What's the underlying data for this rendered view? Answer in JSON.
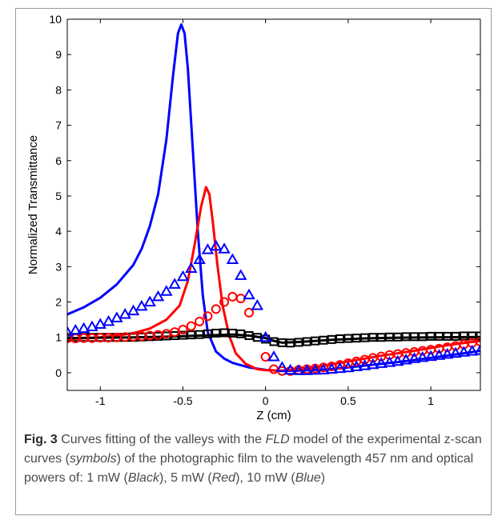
{
  "chart_data": {
    "type": "scatter",
    "xlabel": "Z (cm)",
    "ylabel": "Normalized Transmittance",
    "xlim": [
      -1.2,
      1.3
    ],
    "ylim": [
      -0.5,
      10
    ],
    "x_ticks": [
      "-1",
      "-0.5",
      "0",
      "0.5",
      "1"
    ],
    "x_tick_values": [
      -1,
      -0.5,
      0,
      0.5,
      1
    ],
    "y_ticks": [
      "0",
      "1",
      "2",
      "3",
      "4",
      "5",
      "6",
      "7",
      "8",
      "9",
      "10"
    ],
    "y_tick_values": [
      0,
      1,
      2,
      3,
      4,
      5,
      6,
      7,
      8,
      9,
      10
    ],
    "grid": false,
    "series": [
      {
        "kind": "fit",
        "color": "#0000ff",
        "points": [
          [
            -1.2,
            1.65
          ],
          [
            -1.1,
            1.85
          ],
          [
            -1.0,
            2.12
          ],
          [
            -0.9,
            2.5
          ],
          [
            -0.8,
            3.05
          ],
          [
            -0.75,
            3.5
          ],
          [
            -0.7,
            4.15
          ],
          [
            -0.65,
            5.05
          ],
          [
            -0.6,
            6.6
          ],
          [
            -0.56,
            8.4
          ],
          [
            -0.53,
            9.6
          ],
          [
            -0.51,
            9.85
          ],
          [
            -0.49,
            9.6
          ],
          [
            -0.47,
            8.6
          ],
          [
            -0.44,
            6.3
          ],
          [
            -0.41,
            4.0
          ],
          [
            -0.38,
            2.2
          ],
          [
            -0.35,
            1.15
          ],
          [
            -0.3,
            0.6
          ],
          [
            -0.25,
            0.4
          ],
          [
            -0.2,
            0.28
          ],
          [
            -0.1,
            0.15
          ],
          [
            0.0,
            0.08
          ],
          [
            0.1,
            0.05
          ],
          [
            0.2,
            0.06
          ],
          [
            0.4,
            0.1
          ],
          [
            0.6,
            0.2
          ],
          [
            0.8,
            0.3
          ],
          [
            1.0,
            0.42
          ],
          [
            1.2,
            0.55
          ],
          [
            1.3,
            0.62
          ]
        ]
      },
      {
        "kind": "fit",
        "color": "#ff0000",
        "points": [
          [
            -1.2,
            0.95
          ],
          [
            -1.0,
            1.0
          ],
          [
            -0.9,
            1.05
          ],
          [
            -0.8,
            1.12
          ],
          [
            -0.7,
            1.25
          ],
          [
            -0.6,
            1.5
          ],
          [
            -0.52,
            1.9
          ],
          [
            -0.47,
            2.6
          ],
          [
            -0.43,
            3.6
          ],
          [
            -0.39,
            4.7
          ],
          [
            -0.36,
            5.25
          ],
          [
            -0.34,
            5.05
          ],
          [
            -0.32,
            4.3
          ],
          [
            -0.29,
            3.0
          ],
          [
            -0.26,
            1.9
          ],
          [
            -0.22,
            1.05
          ],
          [
            -0.18,
            0.55
          ],
          [
            -0.12,
            0.25
          ],
          [
            -0.05,
            0.1
          ],
          [
            0.0,
            0.07
          ],
          [
            0.1,
            0.06
          ],
          [
            0.3,
            0.15
          ],
          [
            0.5,
            0.32
          ],
          [
            0.7,
            0.48
          ],
          [
            0.9,
            0.62
          ],
          [
            1.1,
            0.78
          ],
          [
            1.3,
            0.9
          ]
        ]
      },
      {
        "kind": "fit",
        "color": "#000000",
        "points": [
          [
            -1.2,
            0.98
          ],
          [
            -1.0,
            0.99
          ],
          [
            -0.8,
            1.0
          ],
          [
            -0.6,
            1.02
          ],
          [
            -0.4,
            1.05
          ],
          [
            -0.2,
            1.08
          ],
          [
            -0.1,
            1.05
          ],
          [
            0.0,
            0.98
          ],
          [
            0.05,
            0.9
          ],
          [
            0.1,
            0.85
          ],
          [
            0.2,
            0.87
          ],
          [
            0.4,
            0.93
          ],
          [
            0.6,
            0.97
          ],
          [
            0.8,
            0.99
          ],
          [
            1.0,
            1.0
          ],
          [
            1.3,
            1.01
          ]
        ]
      },
      {
        "kind": "symbols",
        "marker": "square",
        "color": "#000000",
        "points": [
          [
            -1.2,
            1.0
          ],
          [
            -1.15,
            1.0
          ],
          [
            -1.1,
            1.0
          ],
          [
            -1.05,
            1.0
          ],
          [
            -1.0,
            1.0
          ],
          [
            -0.95,
            1.0
          ],
          [
            -0.9,
            1.0
          ],
          [
            -0.85,
            1.0
          ],
          [
            -0.8,
            1.0
          ],
          [
            -0.75,
            1.01
          ],
          [
            -0.7,
            1.02
          ],
          [
            -0.65,
            1.03
          ],
          [
            -0.6,
            1.04
          ],
          [
            -0.55,
            1.05
          ],
          [
            -0.5,
            1.06
          ],
          [
            -0.45,
            1.07
          ],
          [
            -0.4,
            1.08
          ],
          [
            -0.35,
            1.1
          ],
          [
            -0.3,
            1.12
          ],
          [
            -0.25,
            1.13
          ],
          [
            -0.2,
            1.12
          ],
          [
            -0.15,
            1.1
          ],
          [
            -0.1,
            1.05
          ],
          [
            -0.05,
            1.0
          ],
          [
            0.0,
            0.95
          ],
          [
            0.05,
            0.88
          ],
          [
            0.1,
            0.85
          ],
          [
            0.15,
            0.84
          ],
          [
            0.2,
            0.86
          ],
          [
            0.25,
            0.88
          ],
          [
            0.3,
            0.9
          ],
          [
            0.35,
            0.92
          ],
          [
            0.4,
            0.94
          ],
          [
            0.45,
            0.96
          ],
          [
            0.5,
            0.97
          ],
          [
            0.55,
            0.98
          ],
          [
            0.6,
            0.99
          ],
          [
            0.65,
            1.0
          ],
          [
            0.7,
            1.0
          ],
          [
            0.75,
            1.01
          ],
          [
            0.8,
            1.01
          ],
          [
            0.85,
            1.02
          ],
          [
            0.9,
            1.02
          ],
          [
            0.95,
            1.02
          ],
          [
            1.0,
            1.03
          ],
          [
            1.05,
            1.03
          ],
          [
            1.1,
            1.03
          ],
          [
            1.15,
            1.03
          ],
          [
            1.2,
            1.04
          ],
          [
            1.25,
            1.04
          ],
          [
            1.3,
            1.04
          ]
        ]
      },
      {
        "kind": "symbols",
        "marker": "circle",
        "color": "#ff0000",
        "points": [
          [
            -1.2,
            0.97
          ],
          [
            -1.15,
            0.97
          ],
          [
            -1.1,
            0.98
          ],
          [
            -1.05,
            0.98
          ],
          [
            -1.0,
            0.99
          ],
          [
            -0.95,
            0.99
          ],
          [
            -0.9,
            1.0
          ],
          [
            -0.85,
            1.01
          ],
          [
            -0.8,
            1.02
          ],
          [
            -0.75,
            1.03
          ],
          [
            -0.7,
            1.05
          ],
          [
            -0.65,
            1.07
          ],
          [
            -0.6,
            1.1
          ],
          [
            -0.55,
            1.15
          ],
          [
            -0.5,
            1.22
          ],
          [
            -0.45,
            1.32
          ],
          [
            -0.4,
            1.45
          ],
          [
            -0.35,
            1.6
          ],
          [
            -0.3,
            1.8
          ],
          [
            -0.25,
            2.0
          ],
          [
            -0.2,
            2.15
          ],
          [
            -0.15,
            2.1
          ],
          [
            -0.1,
            1.7
          ],
          [
            0.0,
            0.45
          ],
          [
            0.05,
            0.1
          ],
          [
            0.1,
            0.05
          ],
          [
            0.15,
            0.05
          ],
          [
            0.2,
            0.08
          ],
          [
            0.25,
            0.1
          ],
          [
            0.3,
            0.12
          ],
          [
            0.35,
            0.15
          ],
          [
            0.4,
            0.18
          ],
          [
            0.45,
            0.22
          ],
          [
            0.5,
            0.27
          ],
          [
            0.55,
            0.32
          ],
          [
            0.6,
            0.37
          ],
          [
            0.65,
            0.42
          ],
          [
            0.7,
            0.46
          ],
          [
            0.75,
            0.5
          ],
          [
            0.8,
            0.53
          ],
          [
            0.85,
            0.56
          ],
          [
            0.9,
            0.59
          ],
          [
            0.95,
            0.62
          ],
          [
            1.0,
            0.65
          ],
          [
            1.05,
            0.68
          ],
          [
            1.1,
            0.72
          ],
          [
            1.15,
            0.76
          ],
          [
            1.2,
            0.8
          ],
          [
            1.25,
            0.84
          ],
          [
            1.3,
            0.88
          ]
        ]
      },
      {
        "kind": "symbols",
        "marker": "triangle",
        "color": "#0000ff",
        "points": [
          [
            -1.2,
            1.15
          ],
          [
            -1.15,
            1.2
          ],
          [
            -1.1,
            1.25
          ],
          [
            -1.05,
            1.3
          ],
          [
            -1.0,
            1.37
          ],
          [
            -0.95,
            1.45
          ],
          [
            -0.9,
            1.55
          ],
          [
            -0.85,
            1.65
          ],
          [
            -0.8,
            1.75
          ],
          [
            -0.75,
            1.88
          ],
          [
            -0.7,
            2.0
          ],
          [
            -0.65,
            2.15
          ],
          [
            -0.6,
            2.3
          ],
          [
            -0.55,
            2.5
          ],
          [
            -0.5,
            2.72
          ],
          [
            -0.45,
            2.95
          ],
          [
            -0.4,
            3.2
          ],
          [
            -0.35,
            3.48
          ],
          [
            -0.3,
            3.58
          ],
          [
            -0.25,
            3.5
          ],
          [
            -0.2,
            3.2
          ],
          [
            -0.15,
            2.75
          ],
          [
            -0.1,
            2.2
          ],
          [
            -0.05,
            1.9
          ],
          [
            0.0,
            1.0
          ],
          [
            0.05,
            0.45
          ],
          [
            0.1,
            0.15
          ],
          [
            0.15,
            0.07
          ],
          [
            0.2,
            0.06
          ],
          [
            0.25,
            0.06
          ],
          [
            0.3,
            0.07
          ],
          [
            0.35,
            0.08
          ],
          [
            0.4,
            0.1
          ],
          [
            0.45,
            0.12
          ],
          [
            0.5,
            0.14
          ],
          [
            0.55,
            0.17
          ],
          [
            0.6,
            0.2
          ],
          [
            0.65,
            0.23
          ],
          [
            0.7,
            0.26
          ],
          [
            0.75,
            0.29
          ],
          [
            0.8,
            0.32
          ],
          [
            0.85,
            0.36
          ],
          [
            0.9,
            0.4
          ],
          [
            0.95,
            0.43
          ],
          [
            1.0,
            0.46
          ],
          [
            1.05,
            0.49
          ],
          [
            1.1,
            0.52
          ],
          [
            1.15,
            0.55
          ],
          [
            1.2,
            0.58
          ],
          [
            1.25,
            0.61
          ],
          [
            1.3,
            0.63
          ]
        ]
      }
    ]
  },
  "caption": {
    "fig_label": "Fig. 3",
    "part1": " Curves fitting of the valleys with the ",
    "model": "FLD",
    "part2": " model of the experimental z-scan curves (",
    "symbols": "symbols",
    "part3": ") of the photographic film to the wavelength 457 nm and optical powers of: 1 mW (",
    "black": "Black",
    "part4": "), 5 mW (",
    "red": "Red",
    "part5": "), 10 mW (",
    "blue": "Blue",
    "part6": ")"
  }
}
